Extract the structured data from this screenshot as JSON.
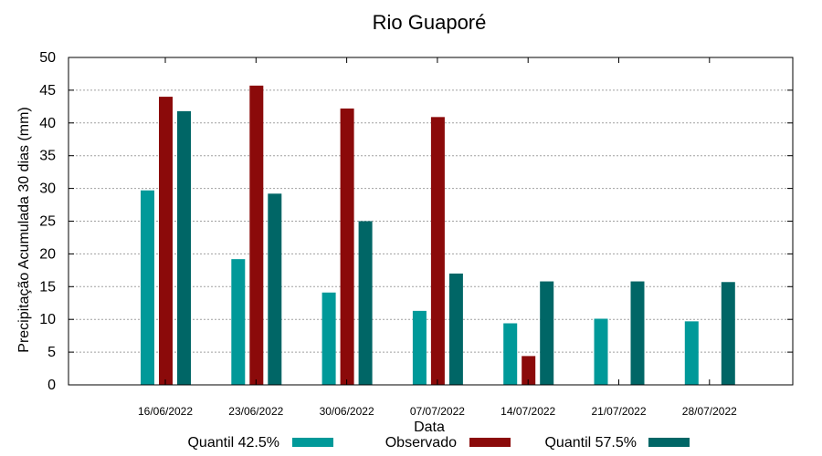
{
  "chart_data": {
    "type": "bar",
    "title": "Rio Guaporé",
    "xlabel": "Data",
    "ylabel": "Precipitação Acumulada 30 dias (mm)",
    "ylim": [
      0,
      50
    ],
    "yticks": [
      0,
      5,
      10,
      15,
      20,
      25,
      30,
      35,
      40,
      45,
      50
    ],
    "grid": true,
    "legend_position": "bottom",
    "categories": [
      "16/06/2022",
      "23/06/2022",
      "30/06/2022",
      "07/07/2022",
      "14/07/2022",
      "21/07/2022",
      "28/07/2022"
    ],
    "series": [
      {
        "name": "Quantil 42.5%",
        "color": "#009999",
        "values": [
          29.7,
          19.2,
          14.1,
          11.3,
          9.4,
          10.1,
          9.7
        ]
      },
      {
        "name": "Observado",
        "color": "#8b0a0a",
        "values": [
          44.0,
          45.7,
          42.2,
          40.9,
          4.4,
          null,
          null
        ]
      },
      {
        "name": "Quantil 57.5%",
        "color": "#006666",
        "values": [
          41.8,
          29.2,
          25.0,
          17.0,
          15.8,
          15.8,
          15.7
        ]
      }
    ]
  }
}
